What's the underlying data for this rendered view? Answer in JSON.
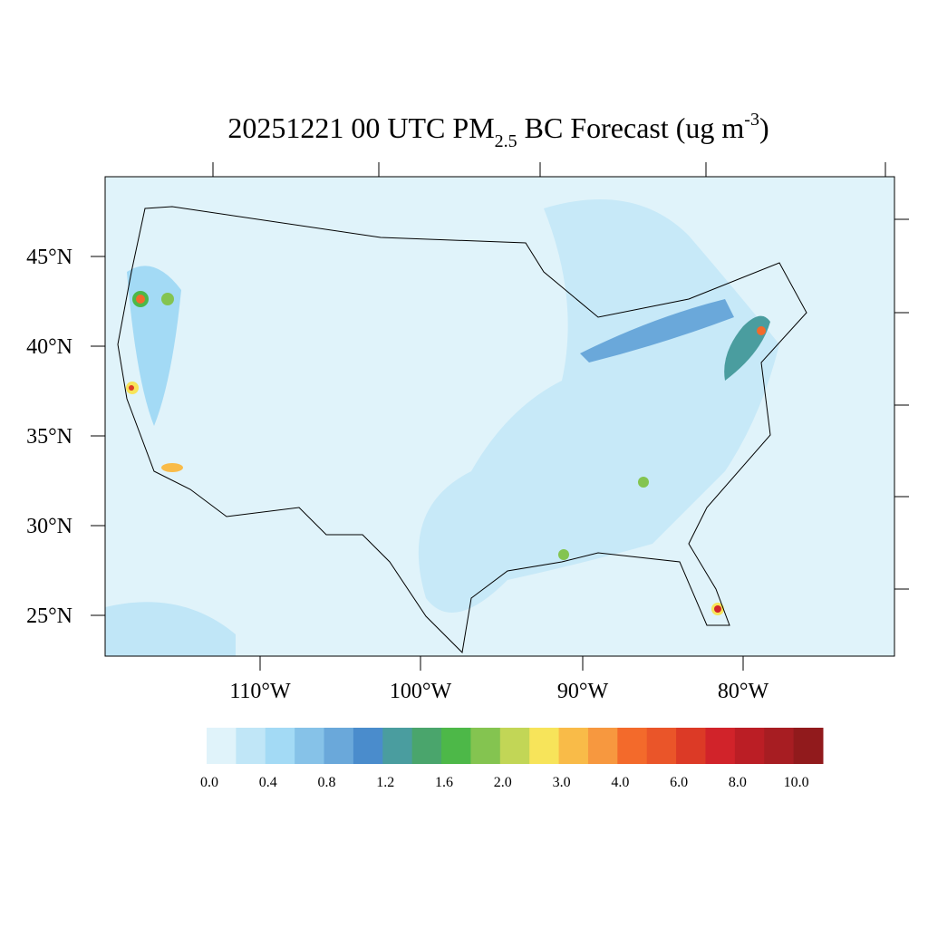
{
  "title": {
    "main": "20251221 00 UTC PM",
    "sub": "2.5",
    "rest": " BC Forecast (ug m",
    "sup": "-3",
    "end": ")"
  },
  "lat_labels": [
    "45°N",
    "40°N",
    "35°N",
    "30°N",
    "25°N"
  ],
  "lon_labels": [
    "110°W",
    "100°W",
    "90°W",
    "80°W"
  ],
  "colorbar": {
    "colors": [
      "#e0f3fa",
      "#c0e6f7",
      "#a3daf5",
      "#86c2e8",
      "#6aa8da",
      "#4a8ccc",
      "#4a9d9f",
      "#4aa56c",
      "#4db848",
      "#84c450",
      "#c2d656",
      "#f7e45a",
      "#f9bb48",
      "#f7983f",
      "#f36a2b",
      "#ea5529",
      "#dc3a26",
      "#d1232a",
      "#bb1e25",
      "#a71d22",
      "#911a1c"
    ],
    "labels": [
      "0.0",
      "0.4",
      "0.8",
      "1.2",
      "1.6",
      "2.0",
      "3.0",
      "4.0",
      "6.0",
      "8.0",
      "10.0"
    ]
  }
}
